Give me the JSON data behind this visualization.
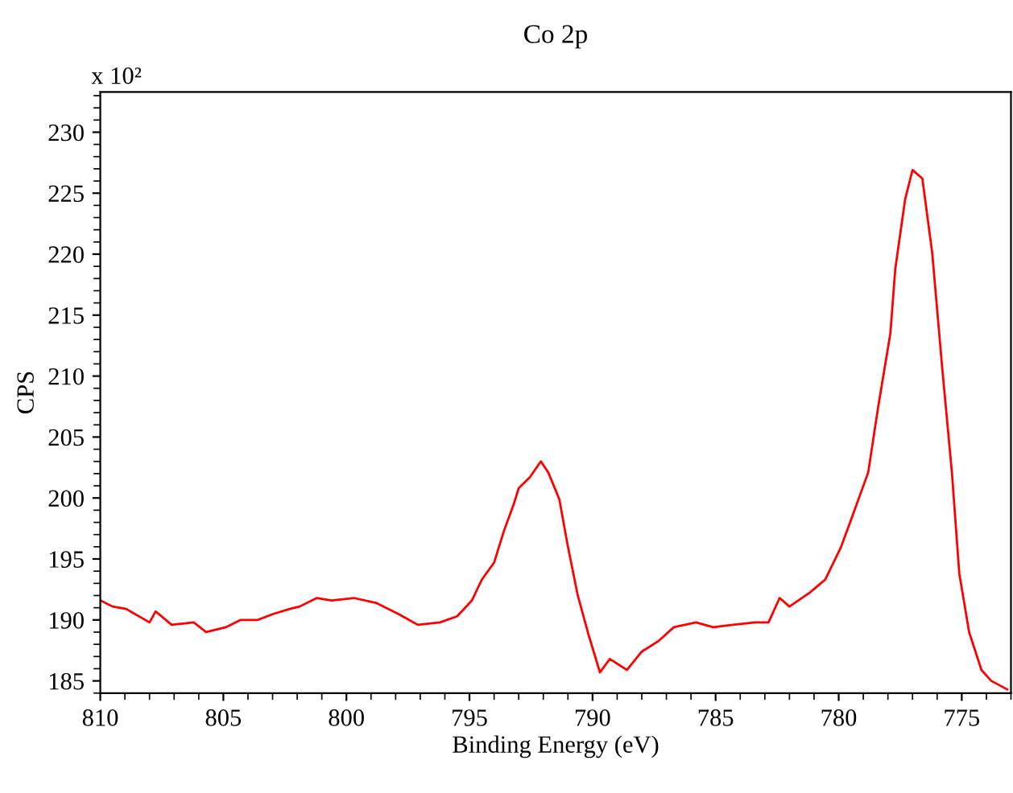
{
  "chart_data": {
    "type": "line",
    "title": "Co 2p",
    "xlabel": "Binding Energy (eV)",
    "ylabel": "CPS",
    "annotations": [
      "x 10²"
    ],
    "x": [
      810,
      809.5,
      808.95,
      808.0,
      807.75,
      807.1,
      806.2,
      805.7,
      804.9,
      804.3,
      803.6,
      802.96,
      802.3,
      801.9,
      801.2,
      800.6,
      799.7,
      798.8,
      797.9,
      797.1,
      796.2,
      795.5,
      794.9,
      794.5,
      794.0,
      793.6,
      793.2,
      793.0,
      792.55,
      792.1,
      791.8,
      791.35,
      791.0,
      790.6,
      790.15,
      789.7,
      789.3,
      788.6,
      788.0,
      787.3,
      786.7,
      785.8,
      785.1,
      784.3,
      783.4,
      782.85,
      782.4,
      782.0,
      781.2,
      780.55,
      779.9,
      779.5,
      778.8,
      778.4,
      777.9,
      777.7,
      777.3,
      777.0,
      776.6,
      776.2,
      775.8,
      775.4,
      775.1,
      774.7,
      774.2,
      773.8,
      773.15
    ],
    "series": [
      {
        "color": "#ff0000",
        "values": [
          191.6,
          191.1,
          190.9,
          189.8,
          190.7,
          189.6,
          189.8,
          189.0,
          189.4,
          190.0,
          190.0,
          190.5,
          190.9,
          191.1,
          191.8,
          191.6,
          191.8,
          191.4,
          190.5,
          189.6,
          189.8,
          190.3,
          191.6,
          193.3,
          194.7,
          197.3,
          199.5,
          200.8,
          201.7,
          203.0,
          202.1,
          199.9,
          196.0,
          192.0,
          188.7,
          185.7,
          186.8,
          185.9,
          187.4,
          188.3,
          189.4,
          189.8,
          189.4,
          189.6,
          189.8,
          189.8,
          191.8,
          191.1,
          192.2,
          193.3,
          196.0,
          198.2,
          202.1,
          207.4,
          213.5,
          218.8,
          224.5,
          226.9,
          226.2,
          220.1,
          210.8,
          202.1,
          193.8,
          189.0,
          185.9,
          185.0,
          184.3
        ]
      }
    ],
    "xlim": [
      810,
      773
    ],
    "xticks": [
      810,
      805,
      800,
      795,
      790,
      785,
      780,
      775
    ],
    "ylim": [
      184,
      233.3
    ],
    "yticks": [
      185,
      190,
      195,
      200,
      205,
      210,
      215,
      220,
      225,
      230
    ],
    "grid": false,
    "legend": false,
    "marker": "none",
    "line_style": "solid"
  }
}
